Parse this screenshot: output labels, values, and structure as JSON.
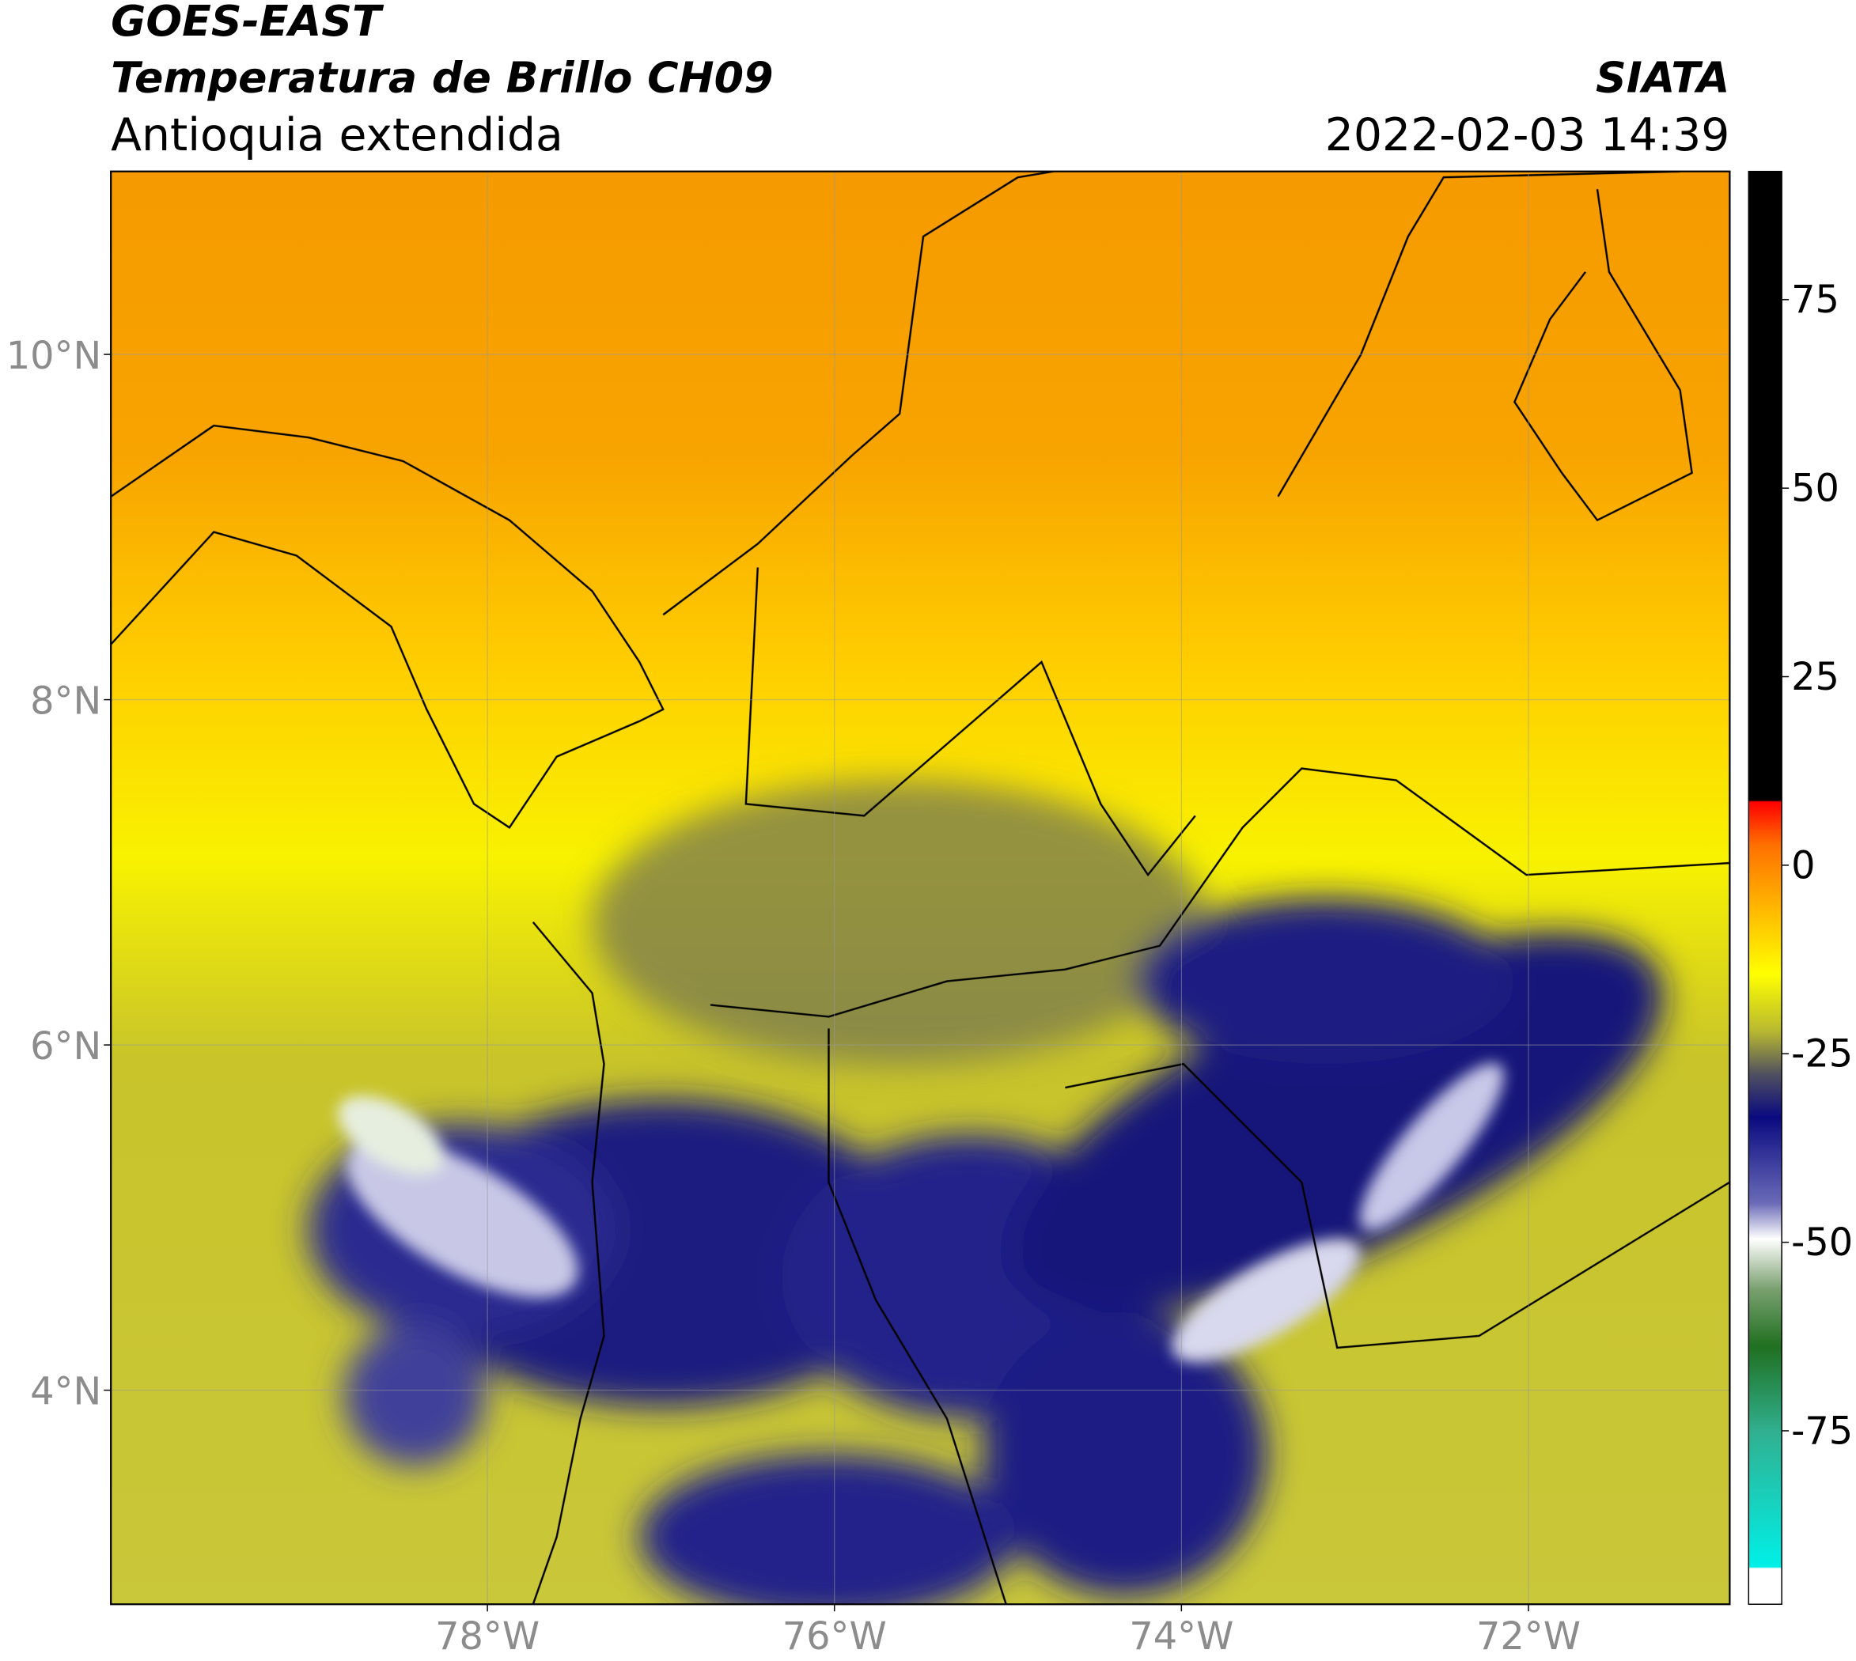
{
  "header": {
    "title": "GOES-EAST",
    "subtitle": "Temperatura de Brillo CH09",
    "region": "Antioquia extendida",
    "source": "SIATA",
    "datetime": "2022-02-03 14:39"
  },
  "map": {
    "lon_lim": [
      -80.17,
      -70.84
    ],
    "lat_lim": [
      2.76,
      11.06
    ],
    "lon_ticks": [
      {
        "value": -78,
        "label": "78°W"
      },
      {
        "value": -76,
        "label": "76°W"
      },
      {
        "value": -74,
        "label": "74°W"
      },
      {
        "value": -72,
        "label": "72°W"
      }
    ],
    "lat_ticks": [
      {
        "value": 4,
        "label": "4°N"
      },
      {
        "value": 6,
        "label": "6°N"
      },
      {
        "value": 8,
        "label": "8°N"
      },
      {
        "value": 10,
        "label": "10°N"
      }
    ],
    "grid": true
  },
  "colorbar": {
    "lim": [
      -98,
      92
    ],
    "ticks": [
      -75,
      -50,
      -25,
      0,
      25,
      50,
      75
    ]
  }
}
